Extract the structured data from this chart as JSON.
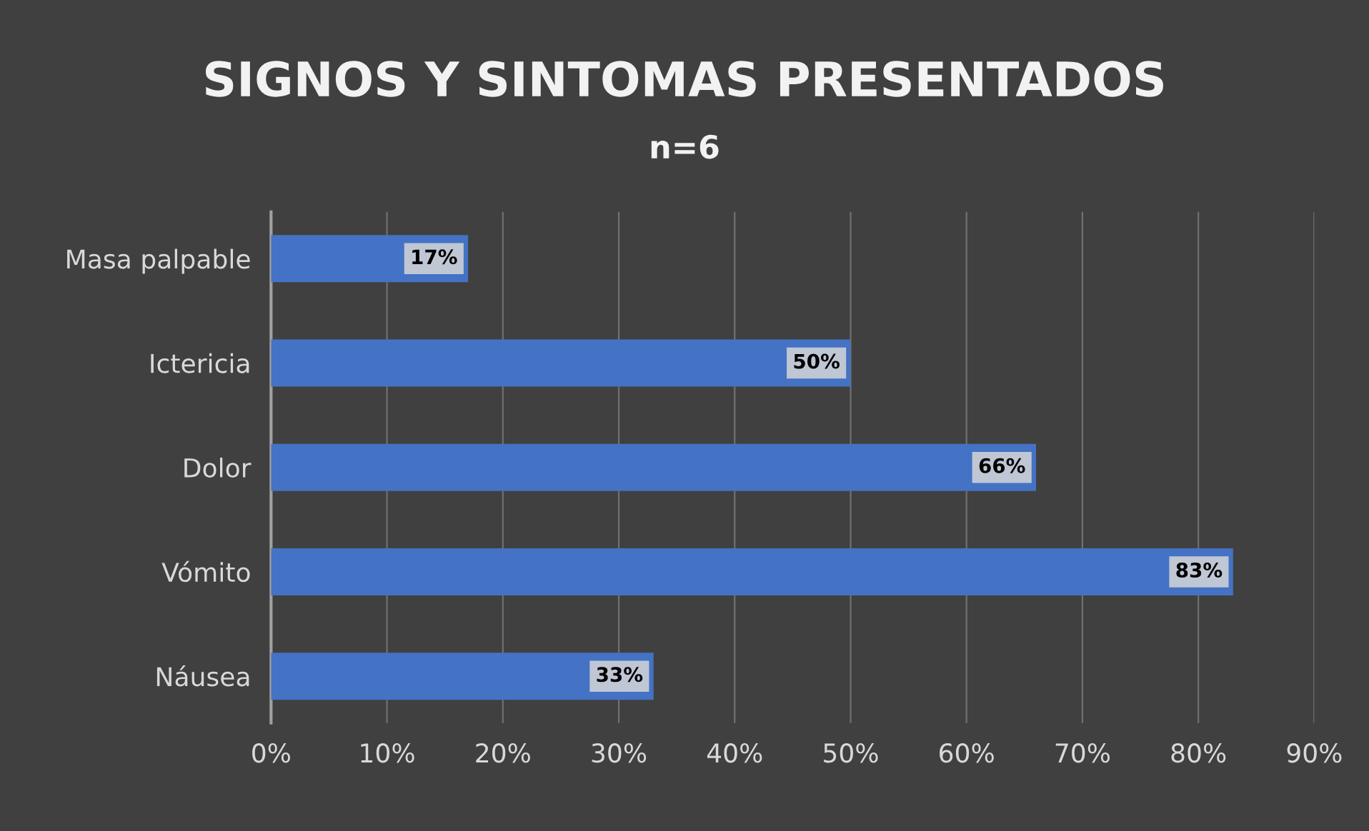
{
  "chart_data": {
    "type": "bar",
    "orientation": "horizontal",
    "title": "SIGNOS Y SINTOMAS PRESENTADOS",
    "subtitle": "n=6",
    "categories": [
      "Masa palpable",
      "Ictericia",
      "Dolor",
      "Vómito",
      "Náusea"
    ],
    "values": [
      17,
      50,
      66,
      83,
      33
    ],
    "value_labels": [
      "17%",
      "50%",
      "66%",
      "83%",
      "33%"
    ],
    "color": "#4472c4",
    "xlim": [
      0,
      90
    ],
    "xticks": [
      {
        "value": 0,
        "label": "0%"
      },
      {
        "value": 10,
        "label": "10%"
      },
      {
        "value": 20,
        "label": "20%"
      },
      {
        "value": 30,
        "label": "30%"
      },
      {
        "value": 40,
        "label": "40%"
      },
      {
        "value": 50,
        "label": "50%"
      },
      {
        "value": 60,
        "label": "60%"
      },
      {
        "value": 70,
        "label": "70%"
      },
      {
        "value": 80,
        "label": "80%"
      },
      {
        "value": 90,
        "label": "90%"
      }
    ],
    "grid": "x",
    "legend": false
  }
}
